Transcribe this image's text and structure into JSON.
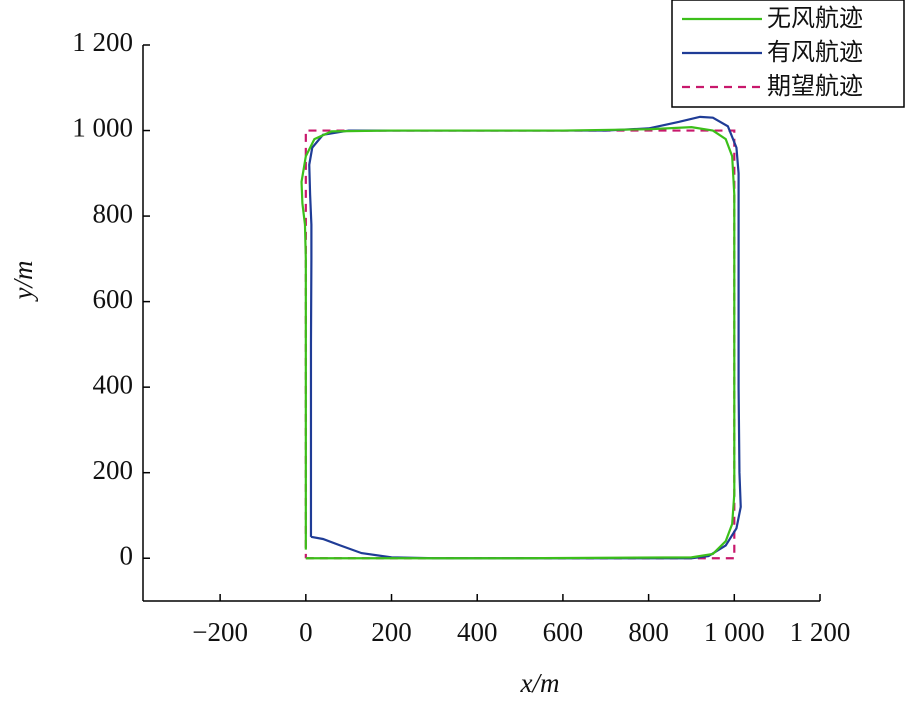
{
  "chart_data": {
    "type": "line",
    "xlabel": "x/m",
    "ylabel": "y/m",
    "xlim": [
      -380,
      1200
    ],
    "ylim": [
      -100,
      1200
    ],
    "xticks": [
      {
        "value": -200,
        "label": "−200"
      },
      0,
      200,
      400,
      600,
      800,
      {
        "value": 1000,
        "label": "1 000"
      },
      {
        "value": 1200,
        "label": "1 200"
      }
    ],
    "yticks": [
      0,
      200,
      400,
      600,
      800,
      {
        "value": 1000,
        "label": "1 000"
      },
      {
        "value": 1200,
        "label": "1 200"
      }
    ],
    "legend": "top-right",
    "series": [
      {
        "name": "无风航迹",
        "color": "#3cbf1a",
        "dashed": false,
        "x": [
          0,
          0,
          0,
          -2,
          -8,
          -10,
          0,
          20,
          60,
          200,
          600,
          800,
          900,
          950,
          980,
          995,
          1000,
          1000,
          1000,
          1000,
          995,
          980,
          950,
          900,
          500,
          200,
          80,
          20,
          0
        ],
        "values": [
          20,
          400,
          700,
          780,
          830,
          880,
          940,
          980,
          998,
          1000,
          1000,
          1003,
          1008,
          1000,
          980,
          940,
          850,
          600,
          300,
          150,
          80,
          40,
          10,
          2,
          0,
          0,
          0,
          0,
          0
        ]
      },
      {
        "name": "有风航迹",
        "color": "#1f3c96",
        "dashed": false,
        "x": [
          12,
          40,
          80,
          130,
          200,
          300,
          600,
          900,
          940,
          980,
          1005,
          1015,
          1012,
          1010,
          1010,
          1010,
          1005,
          985,
          950,
          920,
          870,
          800,
          700,
          400,
          100,
          40,
          15,
          8,
          10,
          13,
          13,
          12,
          12,
          12,
          12
        ],
        "values": [
          50,
          45,
          30,
          12,
          2,
          0,
          0,
          0,
          5,
          30,
          70,
          120,
          200,
          400,
          700,
          900,
          960,
          1010,
          1030,
          1032,
          1020,
          1005,
          1000,
          1000,
          1000,
          990,
          960,
          920,
          850,
          780,
          700,
          500,
          300,
          100,
          50
        ]
      },
      {
        "name": "期望航迹",
        "color": "#c8186c",
        "dashed": true,
        "x": [
          0,
          1000,
          1000,
          0,
          0
        ],
        "values": [
          0,
          0,
          1000,
          1000,
          0
        ]
      }
    ]
  }
}
